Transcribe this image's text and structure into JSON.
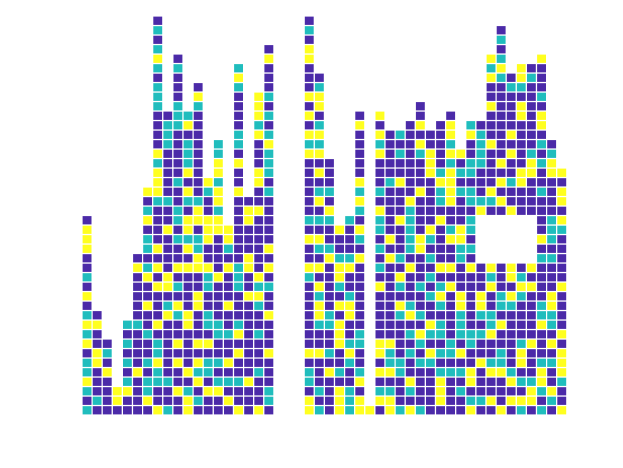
{
  "chart_data": {
    "type": "heatmap",
    "title": "",
    "xlabel": "",
    "ylabel": "",
    "axes_visible": false,
    "grid": false,
    "legend": "none",
    "palette": [
      "#4b2aa8",
      "#20bdbd",
      "#ffff1f"
    ],
    "column_heights": [
      21,
      11,
      8,
      3,
      10,
      17,
      24,
      42,
      32,
      38,
      32,
      35,
      25,
      29,
      20,
      37,
      23,
      34,
      39,
      0,
      0,
      0,
      42,
      36,
      27,
      20,
      21,
      32,
      1,
      32,
      30,
      30,
      31,
      33,
      30,
      31,
      32,
      28,
      31,
      31,
      38,
      41,
      36,
      37,
      37,
      38,
      29,
      26
    ],
    "hole": {
      "columns": [
        39,
        44
      ],
      "rows": [
        16,
        20
      ]
    }
  }
}
